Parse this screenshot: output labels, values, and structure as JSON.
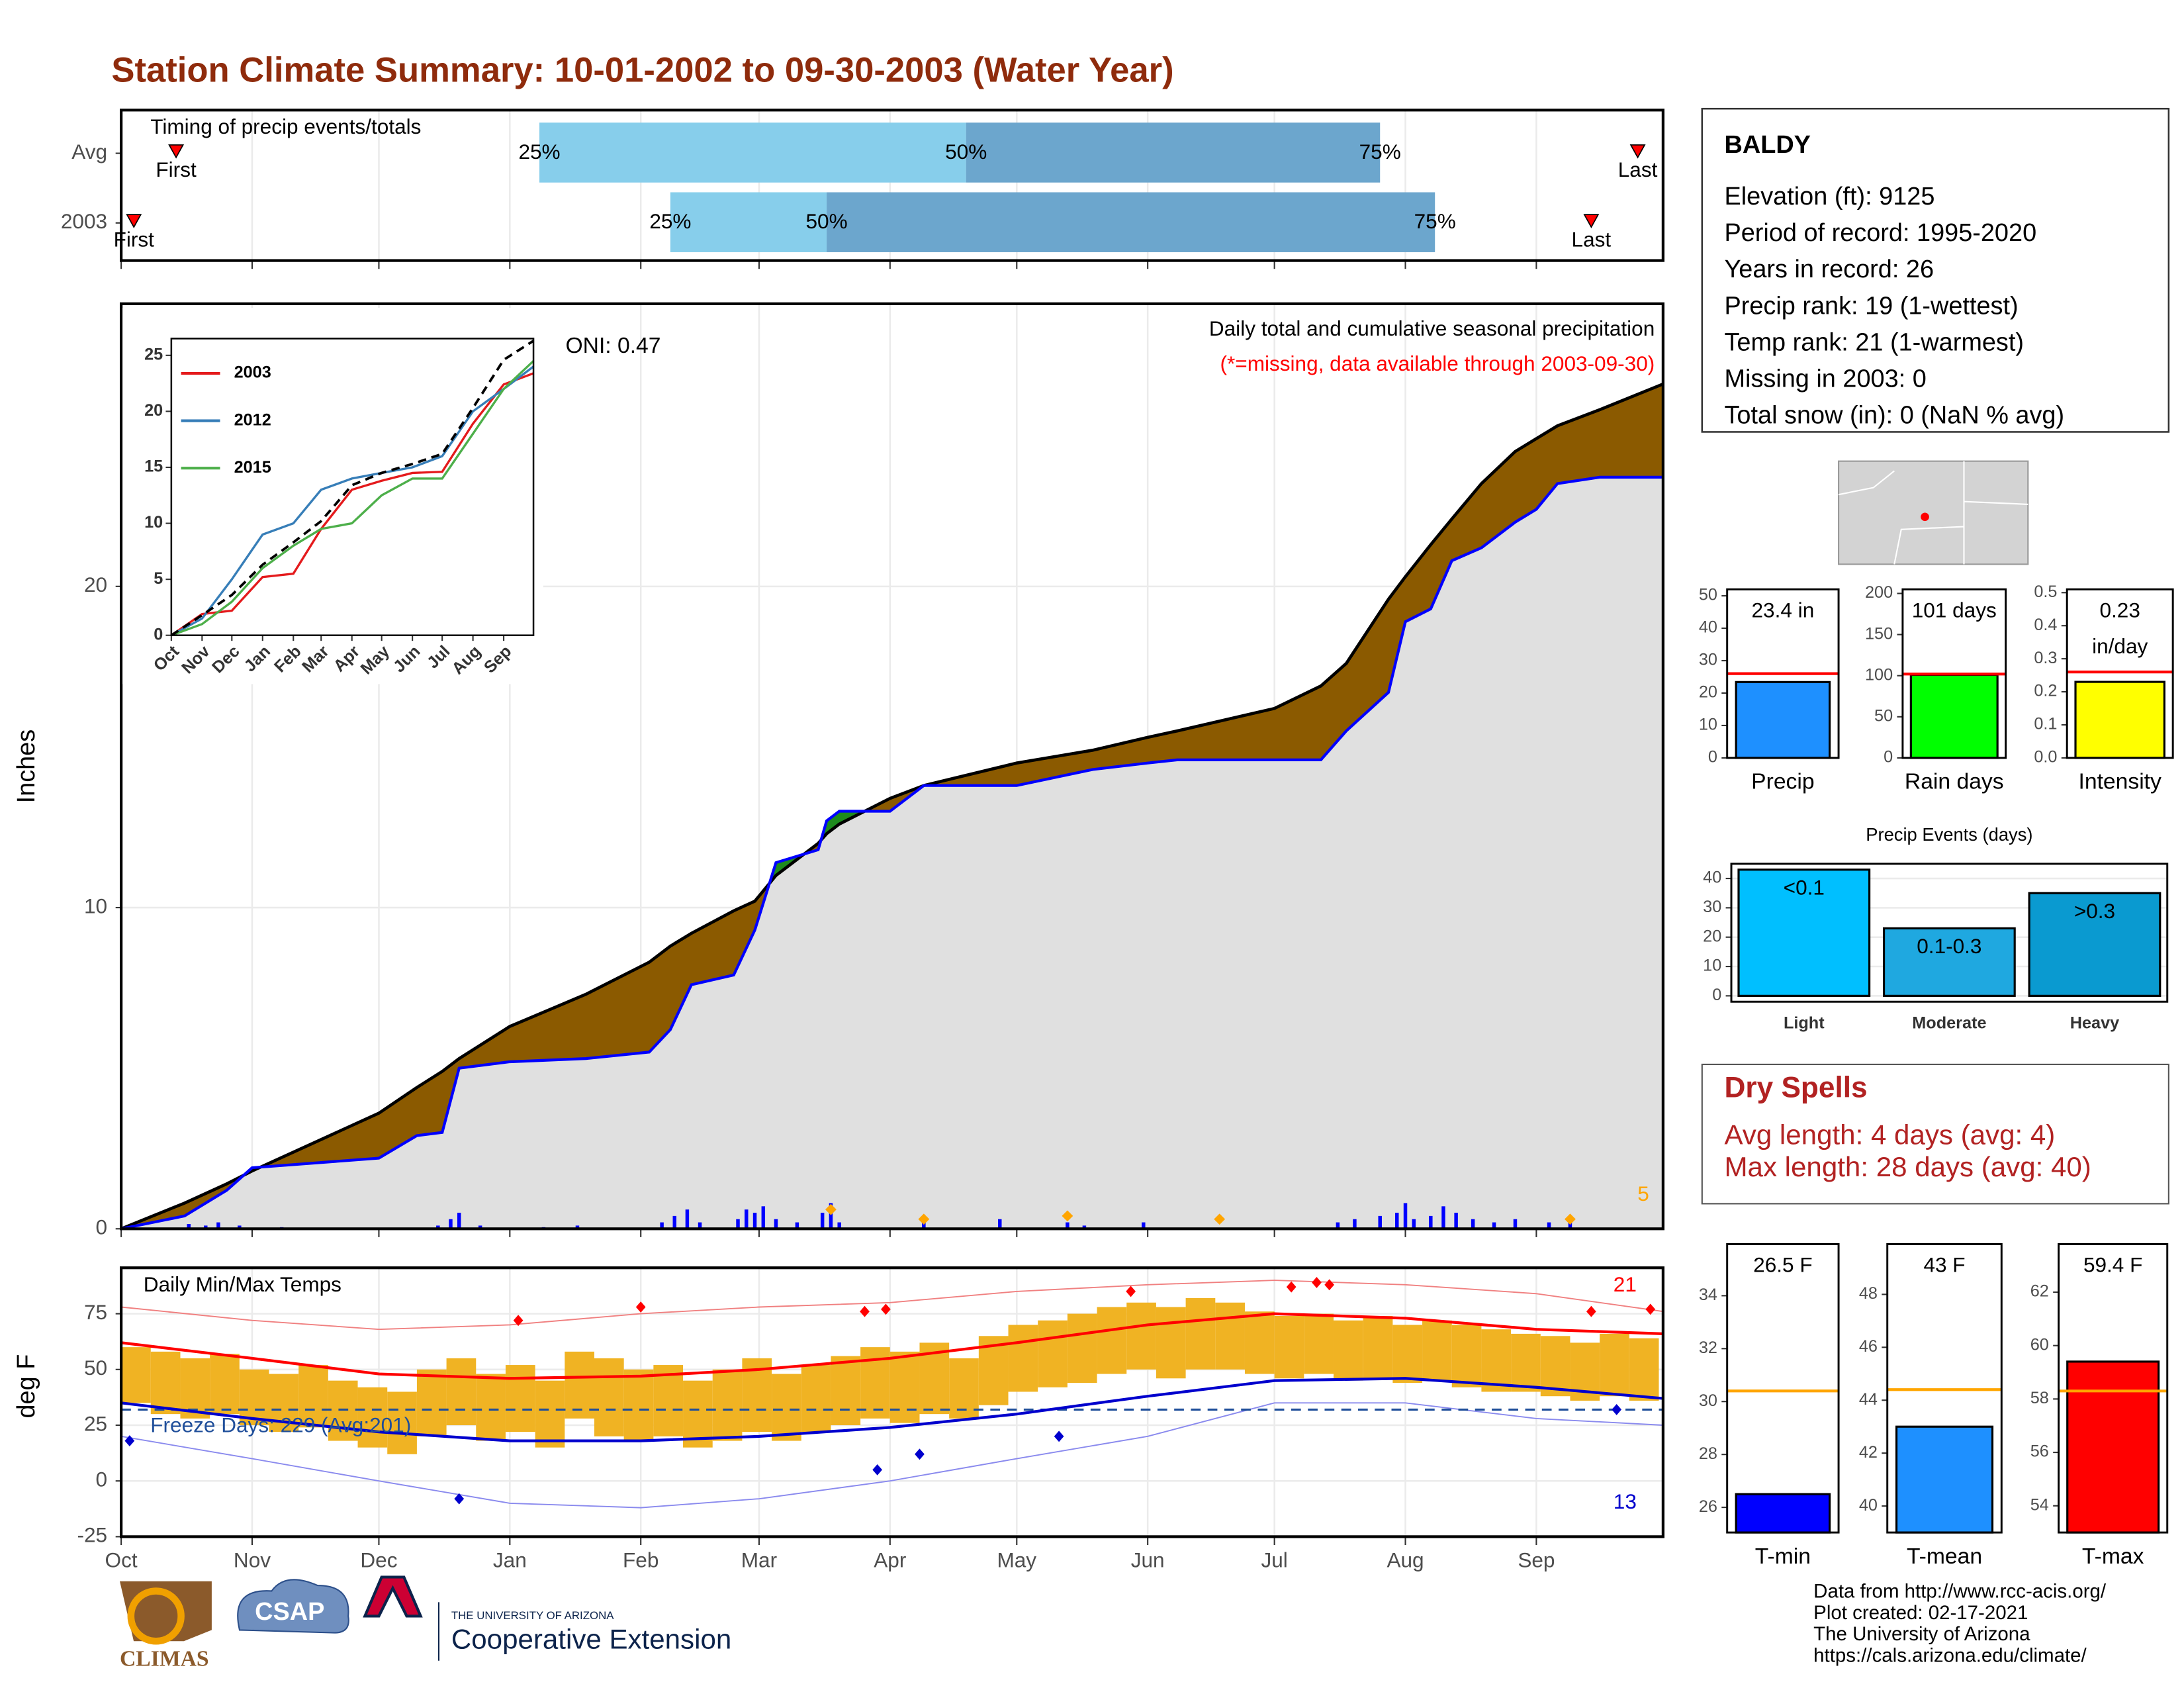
{
  "title": "Station Climate Summary: 10-01-2002 to 09-30-2003 (Water Year)",
  "info": {
    "station": "BALDY",
    "lines": [
      "Elevation (ft): 9125",
      "Period of record: 1995-2020",
      "Years in record: 26",
      "Precip rank: 19 (1-wettest)",
      "Temp rank: 21 (1-warmest)",
      "Missing in 2003: 0",
      "Total snow (in): 0 (NaN % avg)"
    ]
  },
  "dry_spells": {
    "title": "Dry Spells",
    "lines": [
      "Avg length: 4 days (avg: 4)",
      "Max length: 28 days (avg: 40)"
    ]
  },
  "footer": [
    "Data from http://www.rcc-acis.org/",
    "Plot created: 02-17-2021",
    "The University of Arizona",
    "https://cals.arizona.edu/climate/"
  ],
  "logos": {
    "climas": "CLIMAS",
    "csap": "CSAP",
    "university": "THE UNIVERSITY OF ARIZONA",
    "extension": "Cooperative Extension"
  },
  "chart_data": [
    {
      "type": "timing",
      "label": "Timing of precip events/totals",
      "xlim": [
        0,
        365
      ],
      "xticks": [
        0,
        31,
        61,
        92,
        123,
        151,
        182,
        212,
        243,
        273,
        304,
        335
      ],
      "rows": [
        {
          "name": "Avg",
          "first": 13,
          "q25": 99,
          "q50": 200,
          "q75": 298,
          "last": 359
        },
        {
          "name": "2003",
          "first": 3,
          "q25": 130,
          "q50": 167,
          "q75": 311,
          "last": 348
        }
      ],
      "quantile_labels": [
        "25%",
        "50%",
        "75%"
      ],
      "first_label": "First",
      "last_label": "Last",
      "colors": [
        "#87ceeb",
        "#6ca6cd"
      ],
      "marker_color": "#ff0000"
    },
    {
      "type": "area",
      "ylabel": "Inches",
      "title": "Daily total and cumulative seasonal precipitation",
      "subtitle": "(*=missing, data available through 2003-09-30)",
      "oni": "ONI: 0.47",
      "xlim": [
        0,
        365
      ],
      "ylim": [
        0,
        28.8
      ],
      "yticks": [
        0,
        10,
        20
      ],
      "xticks": [
        0,
        31,
        61,
        92,
        123,
        151,
        182,
        212,
        243,
        273,
        304,
        335
      ],
      "grid": true,
      "x": [
        0,
        15,
        25,
        31,
        61,
        70,
        76,
        80,
        92,
        110,
        125,
        130,
        135,
        145,
        150,
        155,
        165,
        167,
        170,
        182,
        190,
        212,
        230,
        243,
        250,
        273,
        284,
        290,
        300,
        304,
        310,
        315,
        322,
        330,
        335,
        340,
        350,
        365
      ],
      "observed": {
        "color": "#0000ff",
        "values": [
          0,
          0.4,
          1.2,
          1.9,
          2.2,
          2.9,
          3.0,
          5.0,
          5.2,
          5.3,
          5.5,
          6.2,
          7.6,
          7.9,
          9.3,
          11.4,
          11.8,
          12.7,
          13.0,
          13.0,
          13.8,
          13.8,
          14.3,
          14.5,
          14.6,
          14.6,
          14.6,
          15.5,
          16.7,
          18.9,
          19.3,
          20.8,
          21.2,
          22.0,
          22.4,
          23.2,
          23.4,
          23.4
        ]
      },
      "average": {
        "color": "#000000",
        "values": [
          0,
          0.8,
          1.4,
          1.8,
          3.6,
          4.4,
          4.9,
          5.3,
          6.3,
          7.3,
          8.3,
          8.8,
          9.2,
          9.9,
          10.2,
          11.0,
          12.0,
          12.3,
          12.6,
          13.4,
          13.8,
          14.5,
          14.9,
          15.3,
          15.5,
          16.2,
          16.9,
          17.6,
          19.6,
          20.3,
          21.3,
          22.1,
          23.2,
          24.2,
          24.6,
          25.0,
          25.5,
          26.3
        ]
      },
      "fill_color": "#e0e0e0",
      "below_color": "#8b5a00",
      "above_color": "#1e8b1e",
      "daily": {
        "color": "#0000ff",
        "days": [
          16,
          20,
          23,
          28,
          38,
          75,
          78,
          80,
          85,
          100,
          108,
          128,
          131,
          134,
          137,
          146,
          148,
          150,
          152,
          155,
          160,
          166,
          168,
          170,
          190,
          208,
          224,
          228,
          242,
          288,
          292,
          298,
          302,
          304,
          306,
          310,
          313,
          316,
          320,
          325,
          330,
          338,
          343
        ],
        "values": [
          0.15,
          0.1,
          0.2,
          0.1,
          0.05,
          0.1,
          0.3,
          0.5,
          0.1,
          0.05,
          0.1,
          0.2,
          0.4,
          0.6,
          0.2,
          0.3,
          0.6,
          0.5,
          0.7,
          0.3,
          0.2,
          0.5,
          0.8,
          0.2,
          0.3,
          0.3,
          0.2,
          0.1,
          0.2,
          0.2,
          0.3,
          0.4,
          0.5,
          0.8,
          0.3,
          0.4,
          0.7,
          0.5,
          0.3,
          0.2,
          0.3,
          0.2,
          0.4
        ]
      },
      "records": {
        "color": "#ffa500",
        "days": [
          168,
          190,
          224,
          260,
          343
        ],
        "values": [
          0.6,
          0.3,
          0.4,
          0.3,
          0.3
        ],
        "count": 5
      }
    },
    {
      "type": "line",
      "xlim": [
        0,
        365
      ],
      "ylim": [
        0,
        26.5
      ],
      "yticks": [
        0,
        5,
        10,
        15,
        20,
        25
      ],
      "xticks": [
        {
          "value": 0,
          "label": "Oct"
        },
        {
          "value": 31,
          "label": "Nov"
        },
        {
          "value": 61,
          "label": "Dec"
        },
        {
          "value": 92,
          "label": "Jan"
        },
        {
          "value": 123,
          "label": "Feb"
        },
        {
          "value": 151,
          "label": "Mar"
        },
        {
          "value": 182,
          "label": "Apr"
        },
        {
          "value": 212,
          "label": "May"
        },
        {
          "value": 243,
          "label": "Jun"
        },
        {
          "value": 273,
          "label": "Jul"
        },
        {
          "value": 304,
          "label": "Aug"
        },
        {
          "value": 335,
          "label": "Sep"
        }
      ],
      "x": [
        0,
        31,
        61,
        92,
        123,
        151,
        182,
        212,
        243,
        273,
        304,
        335,
        365
      ],
      "series": [
        {
          "name": "2003",
          "color": "#e41a1c",
          "values": [
            0,
            1.9,
            2.2,
            5.2,
            5.5,
            9.5,
            13.0,
            13.8,
            14.5,
            14.6,
            18.9,
            22.4,
            23.4
          ]
        },
        {
          "name": "2012",
          "color": "#377eb8",
          "values": [
            0,
            1.5,
            5,
            9,
            10,
            13,
            14,
            14.5,
            15,
            16,
            20,
            22,
            24
          ]
        },
        {
          "name": "2015",
          "color": "#4daf4a",
          "values": [
            0,
            1,
            3,
            6,
            8,
            9.5,
            10,
            12.5,
            14,
            14,
            18,
            22,
            24.5
          ]
        }
      ],
      "average": {
        "color": "#000000",
        "values": [
          0,
          1.8,
          3.6,
          6.3,
          8.3,
          10.2,
          13.4,
          14.5,
          15.3,
          16.2,
          20.3,
          24.6,
          26.3
        ]
      }
    },
    {
      "type": "temp",
      "ylabel": "deg F",
      "label": "Daily Min/Max Temps",
      "freeze_label": "Freeze Days: 229 (Avg:201)",
      "xlim": [
        0,
        365
      ],
      "ylim": [
        -25,
        95.6
      ],
      "yticks": [
        -25,
        0,
        25,
        50,
        75
      ],
      "xticks": [
        {
          "value": 0,
          "label": "Oct"
        },
        {
          "value": 31,
          "label": "Nov"
        },
        {
          "value": 61,
          "label": "Dec"
        },
        {
          "value": 92,
          "label": "Jan"
        },
        {
          "value": 123,
          "label": "Feb"
        },
        {
          "value": 151,
          "label": "Mar"
        },
        {
          "value": 182,
          "label": "Apr"
        },
        {
          "value": 212,
          "label": "May"
        },
        {
          "value": 243,
          "label": "Jun"
        },
        {
          "value": 273,
          "label": "Jul"
        },
        {
          "value": 304,
          "label": "Aug"
        },
        {
          "value": 335,
          "label": "Sep"
        }
      ],
      "x": [
        0,
        7,
        14,
        21,
        28,
        35,
        42,
        49,
        56,
        63,
        70,
        77,
        84,
        91,
        98,
        105,
        112,
        119,
        126,
        133,
        140,
        147,
        154,
        161,
        168,
        175,
        182,
        189,
        196,
        203,
        210,
        217,
        224,
        231,
        238,
        245,
        252,
        259,
        266,
        273,
        280,
        287,
        294,
        301,
        308,
        315,
        322,
        329,
        336,
        343,
        350,
        357
      ],
      "tmax": [
        60,
        58,
        55,
        57,
        50,
        48,
        52,
        45,
        42,
        40,
        50,
        55,
        48,
        52,
        45,
        58,
        55,
        50,
        52,
        45,
        50,
        55,
        48,
        52,
        56,
        60,
        58,
        62,
        55,
        65,
        70,
        72,
        75,
        78,
        80,
        78,
        82,
        80,
        76,
        74,
        75,
        72,
        74,
        70,
        72,
        70,
        68,
        66,
        65,
        62,
        66,
        64
      ],
      "tmin": [
        35,
        30,
        28,
        30,
        25,
        22,
        24,
        18,
        15,
        12,
        20,
        25,
        18,
        22,
        15,
        28,
        20,
        18,
        20,
        15,
        18,
        22,
        18,
        22,
        25,
        28,
        26,
        30,
        28,
        34,
        40,
        42,
        44,
        48,
        50,
        46,
        50,
        50,
        48,
        46,
        48,
        45,
        46,
        44,
        45,
        42,
        40,
        40,
        38,
        36,
        38,
        36
      ],
      "bar_color": "#f0b323",
      "normal_x": [
        0,
        31,
        61,
        92,
        123,
        151,
        182,
        212,
        243,
        273,
        304,
        335,
        365
      ],
      "normal_max": [
        62,
        55,
        48,
        46,
        47,
        50,
        55,
        62,
        70,
        75,
        73,
        68,
        66
      ],
      "normal_min": [
        35,
        28,
        22,
        18,
        18,
        20,
        24,
        30,
        38,
        45,
        46,
        42,
        37
      ],
      "record_max": [
        78,
        72,
        68,
        70,
        75,
        78,
        80,
        85,
        88,
        90,
        88,
        84,
        76
      ],
      "record_min": [
        20,
        10,
        0,
        -10,
        -12,
        -8,
        0,
        10,
        20,
        35,
        35,
        28,
        25
      ],
      "max_color": "#ff0000",
      "min_color": "#0000cd",
      "record_max_color": "#f08080",
      "record_min_color": "#8a8aee",
      "freeze": 32,
      "freeze_color": "#1f4e9a",
      "high_days": [
        94,
        123,
        176,
        181,
        239,
        277,
        283,
        286,
        348,
        362
      ],
      "high_values": [
        72,
        78,
        76,
        77,
        85,
        87,
        89,
        88,
        76,
        77
      ],
      "low_days": [
        2,
        80,
        179,
        189,
        222,
        354
      ],
      "low_values": [
        18,
        -8,
        5,
        12,
        20,
        32
      ],
      "hot_count": 21,
      "cold_count": 13
    },
    {
      "type": "bar",
      "categories": [
        "Precip"
      ],
      "values": [
        23.4
      ],
      "value_labels": [
        "23.4 in"
      ],
      "color": "#1e90ff",
      "avg": 26,
      "avg_color": "#ff0000",
      "ylim": [
        0,
        52
      ],
      "yticks": [
        0,
        10,
        20,
        30,
        40,
        50
      ]
    },
    {
      "type": "bar",
      "categories": [
        "Rain days"
      ],
      "values": [
        101
      ],
      "value_labels": [
        "101 days"
      ],
      "color": "#00ff00",
      "avg": 102,
      "avg_color": "#ff0000",
      "ylim": [
        0,
        205
      ],
      "yticks": [
        0,
        50,
        100,
        150,
        200
      ]
    },
    {
      "type": "bar",
      "categories": [
        "Intensity"
      ],
      "values": [
        0.23
      ],
      "value_labels": [
        "0.23"
      ],
      "unit": "in/day",
      "color": "#ffff00",
      "avg": 0.26,
      "avg_color": "#ff0000",
      "ylim": [
        0,
        0.51
      ],
      "yticks": [
        {
          "value": 0,
          "label": "0.0"
        },
        0.1,
        0.2,
        0.3,
        0.4,
        0.5
      ]
    },
    {
      "type": "bar",
      "title": "Precip Events (days)",
      "categories": [
        "Light",
        "Moderate",
        "Heavy"
      ],
      "values": [
        43,
        23,
        35
      ],
      "bar_labels": [
        "<0.1",
        "0.1-0.3",
        ">0.3"
      ],
      "colors": [
        "#00bfff",
        "#1fa8e0",
        "#0a9ad0"
      ],
      "ylim": [
        -2,
        45
      ],
      "yticks": [
        0,
        10,
        20,
        30,
        40
      ],
      "grid": true
    },
    {
      "type": "bar",
      "categories": [
        "T-min"
      ],
      "values": [
        26.5
      ],
      "value_labels": [
        "26.5 F"
      ],
      "color": "#0000ff",
      "avg": 30.4,
      "avg_color": "#ffa500",
      "ylim": [
        25.05,
        35.95
      ],
      "yticks": [
        26,
        28,
        30,
        32,
        34
      ]
    },
    {
      "type": "bar",
      "categories": [
        "T-mean"
      ],
      "values": [
        43
      ],
      "value_labels": [
        "43 F"
      ],
      "color": "#1e90ff",
      "avg": 44.4,
      "avg_color": "#ffa500",
      "ylim": [
        39,
        49.9
      ],
      "yticks": [
        40,
        42,
        44,
        46,
        48
      ]
    },
    {
      "type": "bar",
      "categories": [
        "T-max"
      ],
      "values": [
        59.4
      ],
      "value_labels": [
        "59.4 F"
      ],
      "color": "#ff0000",
      "avg": 58.3,
      "avg_color": "#ffa500",
      "ylim": [
        53,
        63.8
      ],
      "yticks": [
        54,
        56,
        58,
        60,
        62
      ]
    }
  ]
}
